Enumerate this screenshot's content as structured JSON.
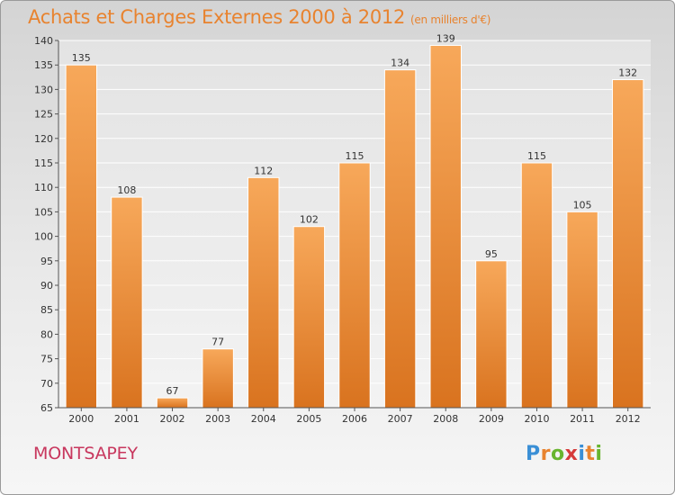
{
  "chart_data": {
    "type": "bar",
    "title": "Achats et Charges Externes 2000 à 2012",
    "unit": "(en milliers d'€)",
    "categories": [
      "2000",
      "2001",
      "2002",
      "2003",
      "2004",
      "2005",
      "2006",
      "2007",
      "2008",
      "2009",
      "2010",
      "2011",
      "2012"
    ],
    "values": [
      135,
      108,
      67,
      77,
      112,
      102,
      115,
      134,
      139,
      95,
      115,
      105,
      132
    ],
    "ylim": [
      65,
      140
    ],
    "yticks": [
      65,
      70,
      75,
      80,
      85,
      90,
      95,
      100,
      105,
      110,
      115,
      120,
      125,
      130,
      135,
      140
    ],
    "grid": true,
    "bar_color_top": "#f7a85a",
    "bar_color_bottom": "#d9731f"
  },
  "municipality": "MONTSAPEY",
  "logo": {
    "letters": [
      "P",
      "r",
      "o",
      "x",
      "i",
      "t",
      "i"
    ],
    "colors": [
      "#3a8fd6",
      "#e8832f",
      "#68b52f",
      "#d63a3a",
      "#3a8fd6",
      "#e8832f",
      "#68b52f"
    ]
  }
}
